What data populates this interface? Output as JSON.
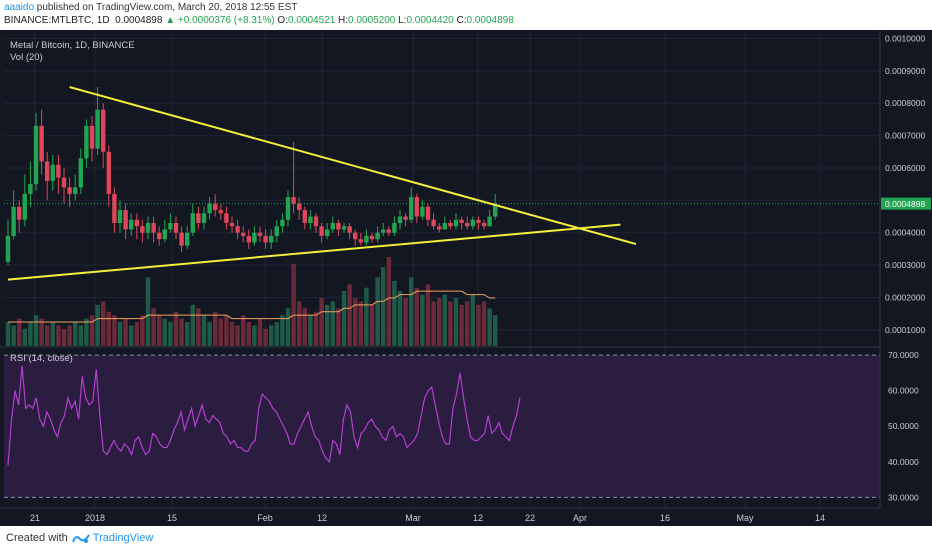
{
  "header": {
    "user": "aaaido",
    "published_text": " published on TradingView.com, March 20, 2018 12:55 EST",
    "symbol": "BINANCE:MTLBTC, 1D",
    "last": "0.0004898",
    "change": "+0.0000376 (+8.31%)",
    "open_label": "O:",
    "open": "0.0004521",
    "high_label": "H:",
    "high": "0.0005200",
    "low_label": "L:",
    "low": "0.0004420",
    "close_label": "C:",
    "close": "0.0004898"
  },
  "legend": {
    "main": "Metal / Bitcoin, 1D, BINANCE",
    "volume": "Vol (20)",
    "rsi": "RSI (14, close)"
  },
  "footer": {
    "created_with": "Created with",
    "brand": "TradingView"
  },
  "chart_data": [
    {
      "type": "candlestick",
      "title": "Metal / Bitcoin, 1D, BINANCE",
      "y_ticks": [
        "0.0010000",
        "0.0009000",
        "0.0008000",
        "0.0007000",
        "0.0006000",
        "0.0004898",
        "0.0004000",
        "0.0003000",
        "0.0002000",
        "0.0001000"
      ],
      "ylim": [
        5e-05,
        0.00102
      ],
      "current_price": "0.0004898",
      "x_ticks": [
        "21",
        "2018",
        "15",
        "Feb",
        "12",
        "Mar",
        "12",
        "22",
        "Apr",
        "16",
        "May",
        "14"
      ],
      "trendlines": [
        {
          "name": "upper",
          "color": "#f5ee3b",
          "from": [
            11,
            0.00085
          ],
          "to": [
            80,
            0.000365
          ]
        },
        {
          "name": "lower",
          "color": "#f5ee3b",
          "from": [
            0,
            0.000255
          ],
          "to": [
            79,
            0.000425
          ]
        }
      ],
      "colors": {
        "up": "#22a552",
        "down": "#e0455a",
        "volume_ma": "#f0a35c"
      },
      "candles": [
        [
          0.00031,
          0.00039,
          0.00044,
          0.0003
        ],
        [
          0.00039,
          0.00048,
          0.00053,
          0.00038
        ],
        [
          0.00048,
          0.00044,
          0.0005,
          0.0004
        ],
        [
          0.00044,
          0.00052,
          0.00058,
          0.00042
        ],
        [
          0.00052,
          0.00055,
          0.00062,
          0.00048
        ],
        [
          0.00055,
          0.00073,
          0.00077,
          0.00053
        ],
        [
          0.00073,
          0.00062,
          0.00078,
          0.00058
        ],
        [
          0.00062,
          0.00056,
          0.00065,
          0.0005
        ],
        [
          0.00056,
          0.00061,
          0.00064,
          0.00053
        ],
        [
          0.00061,
          0.00057,
          0.00064,
          0.00052
        ],
        [
          0.00057,
          0.00054,
          0.0006,
          0.00049
        ],
        [
          0.00054,
          0.00052,
          0.00057,
          0.00048
        ],
        [
          0.00052,
          0.00054,
          0.00058,
          0.0005
        ],
        [
          0.00054,
          0.00063,
          0.00066,
          0.00052
        ],
        [
          0.00063,
          0.00073,
          0.00075,
          0.0006
        ],
        [
          0.00073,
          0.00066,
          0.00076,
          0.00062
        ],
        [
          0.00066,
          0.00078,
          0.00085,
          0.00064
        ],
        [
          0.00078,
          0.00065,
          0.0008,
          0.0006
        ],
        [
          0.00065,
          0.00052,
          0.00067,
          0.00048
        ],
        [
          0.00052,
          0.00043,
          0.00054,
          0.0004
        ],
        [
          0.00043,
          0.00047,
          0.0005,
          0.0004
        ],
        [
          0.00047,
          0.00041,
          0.00049,
          0.00038
        ],
        [
          0.00041,
          0.00044,
          0.00046,
          0.00039
        ],
        [
          0.00044,
          0.00042,
          0.00046,
          0.00038
        ],
        [
          0.00042,
          0.0004,
          0.00044,
          0.00037
        ],
        [
          0.0004,
          0.00043,
          0.00045,
          0.00038
        ],
        [
          0.00043,
          0.0004,
          0.00045,
          0.00037
        ],
        [
          0.0004,
          0.00038,
          0.00042,
          0.00036
        ],
        [
          0.00038,
          0.00041,
          0.00044,
          0.00037
        ],
        [
          0.00041,
          0.00043,
          0.00046,
          0.0004
        ],
        [
          0.00043,
          0.0004,
          0.00045,
          0.00038
        ],
        [
          0.0004,
          0.00036,
          0.00042,
          0.00034
        ],
        [
          0.00036,
          0.0004,
          0.00042,
          0.00035
        ],
        [
          0.0004,
          0.00046,
          0.00049,
          0.00039
        ],
        [
          0.00046,
          0.00043,
          0.00048,
          0.00041
        ],
        [
          0.00043,
          0.00046,
          0.00048,
          0.00041
        ],
        [
          0.00046,
          0.00049,
          0.00051,
          0.00044
        ],
        [
          0.00049,
          0.00047,
          0.00052,
          0.00045
        ],
        [
          0.00047,
          0.00046,
          0.00049,
          0.00044
        ],
        [
          0.00046,
          0.00043,
          0.00048,
          0.00041
        ],
        [
          0.00043,
          0.00042,
          0.00045,
          0.0004
        ],
        [
          0.00042,
          0.0004,
          0.00044,
          0.00038
        ],
        [
          0.0004,
          0.00039,
          0.00042,
          0.00037
        ],
        [
          0.00039,
          0.00037,
          0.00041,
          0.00035
        ],
        [
          0.00037,
          0.0004,
          0.00042,
          0.00036
        ],
        [
          0.0004,
          0.00039,
          0.00042,
          0.00037
        ],
        [
          0.00039,
          0.00037,
          0.00041,
          0.00035
        ],
        [
          0.00037,
          0.00039,
          0.00041,
          0.00035
        ],
        [
          0.00039,
          0.00042,
          0.00044,
          0.00037
        ],
        [
          0.00042,
          0.00044,
          0.00046,
          0.0004
        ],
        [
          0.00044,
          0.00051,
          0.00053,
          0.00042
        ],
        [
          0.00051,
          0.00049,
          0.00068,
          0.00046
        ],
        [
          0.00049,
          0.00047,
          0.00051,
          0.00044
        ],
        [
          0.00047,
          0.00043,
          0.00048,
          0.00041
        ],
        [
          0.00043,
          0.00045,
          0.00047,
          0.00041
        ],
        [
          0.00045,
          0.00042,
          0.00046,
          0.0004
        ],
        [
          0.00042,
          0.00039,
          0.00043,
          0.00037
        ],
        [
          0.00039,
          0.00041,
          0.00043,
          0.00038
        ],
        [
          0.00041,
          0.00043,
          0.00045,
          0.0004
        ],
        [
          0.00043,
          0.00041,
          0.00044,
          0.00039
        ],
        [
          0.00041,
          0.00042,
          0.00043,
          0.0004
        ],
        [
          0.00042,
          0.0004,
          0.00043,
          0.00038
        ],
        [
          0.0004,
          0.00038,
          0.00041,
          0.00036
        ],
        [
          0.00038,
          0.00037,
          0.0004,
          0.00036
        ],
        [
          0.00037,
          0.00039,
          0.00041,
          0.00036
        ],
        [
          0.00039,
          0.00038,
          0.0004,
          0.00037
        ],
        [
          0.00038,
          0.0004,
          0.00042,
          0.00037
        ],
        [
          0.0004,
          0.00041,
          0.00043,
          0.00039
        ],
        [
          0.00041,
          0.0004,
          0.00042,
          0.00039
        ],
        [
          0.0004,
          0.00043,
          0.00045,
          0.00039
        ],
        [
          0.00043,
          0.00045,
          0.00047,
          0.00041
        ],
        [
          0.00045,
          0.00044,
          0.00046,
          0.00042
        ],
        [
          0.00044,
          0.00051,
          0.00054,
          0.00043
        ],
        [
          0.00051,
          0.00045,
          0.00052,
          0.00043
        ],
        [
          0.00045,
          0.00048,
          0.0005,
          0.00044
        ],
        [
          0.00048,
          0.00044,
          0.00049,
          0.00042
        ],
        [
          0.00044,
          0.00042,
          0.00046,
          0.00041
        ],
        [
          0.00042,
          0.00041,
          0.00043,
          0.0004
        ],
        [
          0.00041,
          0.00043,
          0.00045,
          0.00041
        ],
        [
          0.00043,
          0.00042,
          0.00044,
          0.00041
        ],
        [
          0.00042,
          0.00044,
          0.00046,
          0.00041
        ],
        [
          0.00044,
          0.00043,
          0.00045,
          0.00041
        ],
        [
          0.00043,
          0.00042,
          0.00045,
          0.00041
        ],
        [
          0.00042,
          0.00044,
          0.00045,
          0.00041
        ],
        [
          0.00044,
          0.00043,
          0.00045,
          0.00041
        ],
        [
          0.00043,
          0.00042,
          0.00044,
          0.00041
        ],
        [
          0.00042,
          0.00045,
          0.00047,
          0.00042
        ],
        [
          0.00045,
          0.00049,
          0.00052,
          0.00044
        ]
      ],
      "volume": [
        7e-05,
        6e-05,
        8e-05,
        5e-05,
        7e-05,
        9e-05,
        8e-05,
        6e-05,
        7e-05,
        6e-05,
        5e-05,
        6e-05,
        7e-05,
        6e-05,
        8e-05,
        9e-05,
        0.00012,
        0.00013,
        0.0001,
        9e-05,
        7e-05,
        8e-05,
        6e-05,
        7e-05,
        9e-05,
        0.0002,
        0.00011,
        9e-05,
        8e-05,
        7e-05,
        0.0001,
        8e-05,
        7e-05,
        0.00012,
        0.00011,
        9e-05,
        7e-05,
        0.0001,
        8e-05,
        9e-05,
        7e-05,
        6e-05,
        9e-05,
        7e-05,
        6e-05,
        8e-05,
        5e-05,
        6e-05,
        7e-05,
        9e-05,
        0.00011,
        0.00024,
        0.00013,
        0.00011,
        9e-05,
        0.0001,
        0.00014,
        0.00012,
        0.00013,
        0.00011,
        0.00016,
        0.00018,
        0.00014,
        0.00013,
        0.00017,
        0.00012,
        0.0002,
        0.00023,
        0.00026,
        0.00019,
        0.00016,
        0.00014,
        0.0002,
        0.00017,
        0.00015,
        0.00018,
        0.00013,
        0.00014,
        0.00015,
        0.00013,
        0.00014,
        0.00012,
        0.00013,
        0.00015,
        0.00012,
        0.00013,
        0.00011,
        9e-05
      ],
      "volume_ma": [
        7e-05,
        7e-05,
        7e-05,
        7e-05,
        7e-05,
        7e-05,
        7e-05,
        7e-05,
        7e-05,
        7e-05,
        7e-05,
        7e-05,
        7e-05,
        7e-05,
        7e-05,
        7e-05,
        8e-05,
        8e-05,
        8e-05,
        8e-05,
        8e-05,
        8e-05,
        8e-05,
        8e-05,
        8e-05,
        9e-05,
        9e-05,
        9e-05,
        9e-05,
        9e-05,
        9e-05,
        9e-05,
        9e-05,
        9e-05,
        9e-05,
        9e-05,
        9e-05,
        9e-05,
        9e-05,
        9e-05,
        8e-05,
        8e-05,
        8e-05,
        8e-05,
        8e-05,
        8e-05,
        8e-05,
        8e-05,
        8e-05,
        8e-05,
        8e-05,
        9e-05,
        9e-05,
        9e-05,
        9e-05,
        9e-05,
        0.0001,
        0.0001,
        0.0001,
        0.0001,
        0.00011,
        0.00011,
        0.00012,
        0.00012,
        0.00012,
        0.00012,
        0.00013,
        0.00013,
        0.00014,
        0.00014,
        0.00015,
        0.00015,
        0.00015,
        0.00016,
        0.00016,
        0.00016,
        0.00016,
        0.00016,
        0.00016,
        0.00016,
        0.00016,
        0.00016,
        0.00015,
        0.00015,
        0.00015,
        0.00015,
        0.00014,
        0.00014
      ]
    },
    {
      "type": "line",
      "title": "RSI (14, close)",
      "y_ticks": [
        "70.0000",
        "60.0000",
        "50.0000",
        "40.0000",
        "30.0000"
      ],
      "ylim": [
        27,
        72
      ],
      "overbought": 70,
      "oversold": 30,
      "color": "#b43fd0",
      "values": [
        39,
        52,
        60,
        56,
        67,
        55,
        56,
        55,
        58,
        52,
        50,
        54,
        52,
        49,
        47,
        51,
        53,
        58,
        55,
        57,
        52,
        64,
        58,
        56,
        57,
        66,
        53,
        43,
        42,
        44,
        46,
        44,
        43,
        45,
        44,
        42,
        46,
        47,
        44,
        42,
        43,
        48,
        47,
        45,
        44,
        44,
        46,
        49,
        51,
        54,
        49,
        52,
        55,
        50,
        53,
        56,
        52,
        51,
        53,
        52,
        51,
        48,
        47,
        45,
        46,
        44,
        44,
        43,
        43,
        45,
        46,
        55,
        59,
        58,
        57,
        55,
        54,
        52,
        50,
        48,
        45,
        45,
        48,
        50,
        52,
        54,
        50,
        47,
        46,
        43,
        41,
        40,
        46,
        45,
        42,
        52,
        56,
        54,
        47,
        44,
        48,
        49,
        51,
        52,
        50,
        49,
        47,
        46,
        49,
        50,
        47,
        48,
        47,
        44,
        45,
        46,
        48,
        53,
        58,
        60,
        61,
        56,
        51,
        47,
        45,
        45,
        55,
        59,
        65,
        58,
        52,
        47,
        46,
        46,
        47,
        48,
        53,
        48,
        49,
        51,
        48,
        47,
        46,
        50,
        53,
        58
      ]
    }
  ]
}
